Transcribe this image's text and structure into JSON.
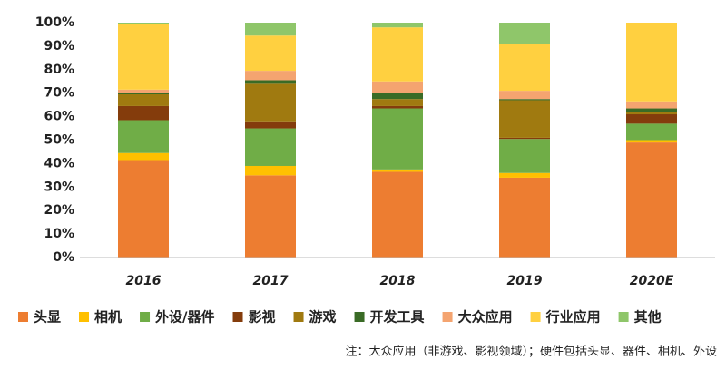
{
  "chart_data": {
    "type": "stacked_bar",
    "categories": [
      "2016",
      "2017",
      "2018",
      "2019",
      "2020E"
    ],
    "series": [
      {
        "name": "头显",
        "color": "#ed7d31",
        "values": [
          41.5,
          35,
          36.5,
          34,
          49
        ]
      },
      {
        "name": "相机",
        "color": "#ffc000",
        "values": [
          3,
          4,
          1,
          2,
          1
        ]
      },
      {
        "name": "外设/器件",
        "color": "#70ad47",
        "values": [
          14,
          16,
          26,
          14.5,
          7
        ]
      },
      {
        "name": "影视",
        "color": "#843c0c",
        "values": [
          6,
          3,
          1,
          0.5,
          4
        ]
      },
      {
        "name": "游戏",
        "color": "#a07a10",
        "values": [
          5,
          16,
          3,
          16,
          1
        ]
      },
      {
        "name": "开发工具",
        "color": "#3a6b26",
        "values": [
          0.5,
          1.5,
          2.5,
          0.5,
          1.5
        ]
      },
      {
        "name": "大众应用",
        "color": "#f4a470",
        "values": [
          1.5,
          4,
          5,
          3.5,
          3
        ]
      },
      {
        "name": "行业应用",
        "color": "#ffd040",
        "values": [
          28,
          15,
          23,
          20,
          33.5
        ]
      },
      {
        "name": "其他",
        "color": "#8fc66a",
        "values": [
          0.5,
          5.5,
          2,
          9,
          0
        ]
      }
    ],
    "ylim": [
      0,
      100
    ],
    "yticks": [
      {
        "value": 0,
        "label": "0%"
      },
      {
        "value": 10,
        "label": "10%"
      },
      {
        "value": 20,
        "label": "20%"
      },
      {
        "value": 30,
        "label": "30%"
      },
      {
        "value": 40,
        "label": "40%"
      },
      {
        "value": 50,
        "label": "50%"
      },
      {
        "value": 60,
        "label": "60%"
      },
      {
        "value": 70,
        "label": "70%"
      },
      {
        "value": 80,
        "label": "80%"
      },
      {
        "value": 90,
        "label": "90%"
      },
      {
        "value": 100,
        "label": "100%"
      }
    ],
    "grid": false,
    "note": "注：大众应用（非游戏、影视领域）；硬件包括头显、器件、相机、外设"
  }
}
